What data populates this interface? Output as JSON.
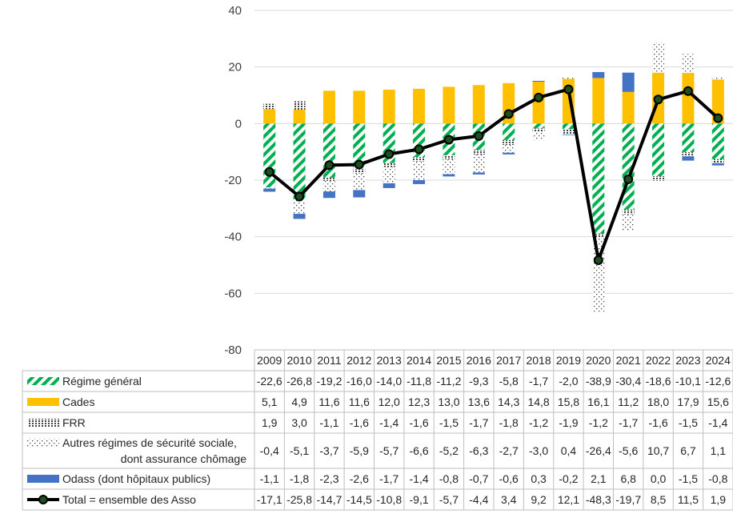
{
  "chart_data": {
    "type": "bar",
    "stacked": true,
    "categories": [
      "2009",
      "2010",
      "2011",
      "2012",
      "2013",
      "2014",
      "2015",
      "2016",
      "2017",
      "2018",
      "2019",
      "2020",
      "2021",
      "2022",
      "2023",
      "2024"
    ],
    "y_ticks": [
      "40",
      "20",
      "0",
      "-20",
      "-40",
      "-60",
      "-80"
    ],
    "ylim": [
      -80,
      40
    ],
    "grid": true,
    "legend": "data-table",
    "series": [
      {
        "key": "rg",
        "name": "Régime général",
        "kind": "bar",
        "color": "#00b050",
        "pattern": "diagonal-dash",
        "values": [
          -22.6,
          -26.8,
          -19.2,
          -16.0,
          -14.0,
          -11.8,
          -11.2,
          -9.3,
          -5.8,
          -1.7,
          -2.0,
          -38.9,
          -30.4,
          -18.6,
          -10.1,
          -12.6
        ],
        "labels": [
          "-22,6",
          "-26,8",
          "-19,2",
          "-16,0",
          "-14,0",
          "-11,8",
          "-11,2",
          "-9,3",
          "-5,8",
          "-1,7",
          "-2,0",
          "-38,9",
          "-30,4",
          "-18,6",
          "-10,1",
          "-12,6"
        ]
      },
      {
        "key": "cades",
        "name": "Cades",
        "kind": "bar",
        "color": "#ffc000",
        "pattern": "solid",
        "values": [
          5.1,
          4.9,
          11.6,
          11.6,
          12.0,
          12.3,
          13.0,
          13.6,
          14.3,
          14.8,
          15.8,
          16.1,
          11.2,
          18.0,
          17.9,
          15.6
        ],
        "labels": [
          "5,1",
          "4,9",
          "11,6",
          "11,6",
          "12,0",
          "12,3",
          "13,0",
          "13,6",
          "14,3",
          "14,8",
          "15,8",
          "16,1",
          "11,2",
          "18,0",
          "17,9",
          "15,6"
        ]
      },
      {
        "key": "frr",
        "name": "FRR",
        "kind": "bar",
        "color": "#404040",
        "pattern": "vertical-dash",
        "values": [
          1.9,
          3.0,
          -1.1,
          -1.6,
          -1.4,
          -1.6,
          -1.5,
          -1.7,
          -1.8,
          -1.2,
          -1.9,
          -1.2,
          -1.7,
          -1.6,
          -1.5,
          -1.4
        ],
        "labels": [
          "1,9",
          "3,0",
          "-1,1",
          "-1,6",
          "-1,4",
          "-1,6",
          "-1,5",
          "-1,7",
          "-1,8",
          "-1,2",
          "-1,9",
          "-1,2",
          "-1,7",
          "-1,6",
          "-1,5",
          "-1,4"
        ]
      },
      {
        "key": "autres",
        "name": "Autres régimes de sécurité sociale,",
        "name_line2": "dont assurance chômage",
        "kind": "bar",
        "color": "#404040",
        "pattern": "dotted",
        "values": [
          -0.4,
          -5.1,
          -3.7,
          -5.9,
          -5.7,
          -6.6,
          -5.2,
          -6.3,
          -2.7,
          -3.0,
          0.4,
          -26.4,
          -5.6,
          10.7,
          6.7,
          1.1
        ],
        "labels": [
          "-0,4",
          "-5,1",
          "-3,7",
          "-5,9",
          "-5,7",
          "-6,6",
          "-5,2",
          "-6,3",
          "-2,7",
          "-3,0",
          "0,4",
          "-26,4",
          "-5,6",
          "10,7",
          "6,7",
          "1,1"
        ]
      },
      {
        "key": "odass",
        "name": "Odass (dont hôpitaux publics)",
        "kind": "bar",
        "color": "#4472c4",
        "pattern": "solid",
        "values": [
          -1.1,
          -1.8,
          -2.3,
          -2.6,
          -1.7,
          -1.4,
          -0.8,
          -0.7,
          -0.6,
          0.3,
          -0.2,
          2.1,
          6.8,
          0.0,
          -1.5,
          -0.8
        ],
        "labels": [
          "-1,1",
          "-1,8",
          "-2,3",
          "-2,6",
          "-1,7",
          "-1,4",
          "-0,8",
          "-0,7",
          "-0,6",
          "0,3",
          "-0,2",
          "2,1",
          "6,8",
          "0,0",
          "-1,5",
          "-0,8"
        ]
      },
      {
        "key": "total",
        "name": "Total = ensemble des Asso",
        "kind": "line",
        "color": "#000000",
        "marker_color": "#1f4e1f",
        "values": [
          -17.1,
          -25.8,
          -14.7,
          -14.5,
          -10.8,
          -9.1,
          -5.7,
          -4.4,
          3.4,
          9.2,
          12.1,
          -48.3,
          -19.7,
          8.5,
          11.5,
          1.9
        ],
        "labels": [
          "-17,1",
          "-25,8",
          "-14,7",
          "-14,5",
          "-10,8",
          "-9,1",
          "-5,7",
          "-4,4",
          "3,4",
          "9,2",
          "12,1",
          "-48,3",
          "-19,7",
          "8,5",
          "11,5",
          "1,9"
        ]
      }
    ]
  }
}
